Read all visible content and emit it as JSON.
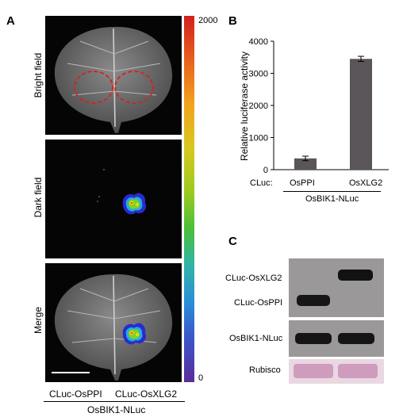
{
  "panels": {
    "a": {
      "letter": "A",
      "row_labels": [
        "Bright field",
        "Dark field",
        "Merge"
      ],
      "colorbar": {
        "max_label": "2000",
        "min_label": "0"
      },
      "column_labels": [
        "CLuc-OsPPI",
        "CLuc-OsXLG2"
      ],
      "group_label": "OsBIK1-NLuc"
    },
    "b": {
      "letter": "B",
      "ylabel": "Relative luciferase activity",
      "yticks": [
        "0",
        "1000",
        "2000",
        "3000",
        "4000"
      ],
      "cluc_prefix": "CLuc:",
      "categories": [
        "OsPPI",
        "OsXLG2"
      ],
      "group_label": "OsBIK1-NLuc"
    },
    "c": {
      "letter": "C",
      "row_labels": [
        "CLuc-OsXLG2",
        "CLuc-OsPPI",
        "OsBIK1-NLuc",
        "Rubisco"
      ]
    }
  },
  "chart_data": {
    "type": "bar",
    "categories": [
      "OsPPI",
      "OsXLG2"
    ],
    "values": [
      350,
      3450
    ],
    "errors": [
      70,
      80
    ],
    "ylabel": "Relative luciferase activity",
    "ylim": [
      0,
      4000
    ],
    "yticks": [
      0,
      1000,
      2000,
      3000,
      4000
    ],
    "bar_color": "#5a5558"
  },
  "colors": {
    "circle": "#d62020",
    "rubisco": "#d8a8c4",
    "bar": "#5a5558"
  }
}
